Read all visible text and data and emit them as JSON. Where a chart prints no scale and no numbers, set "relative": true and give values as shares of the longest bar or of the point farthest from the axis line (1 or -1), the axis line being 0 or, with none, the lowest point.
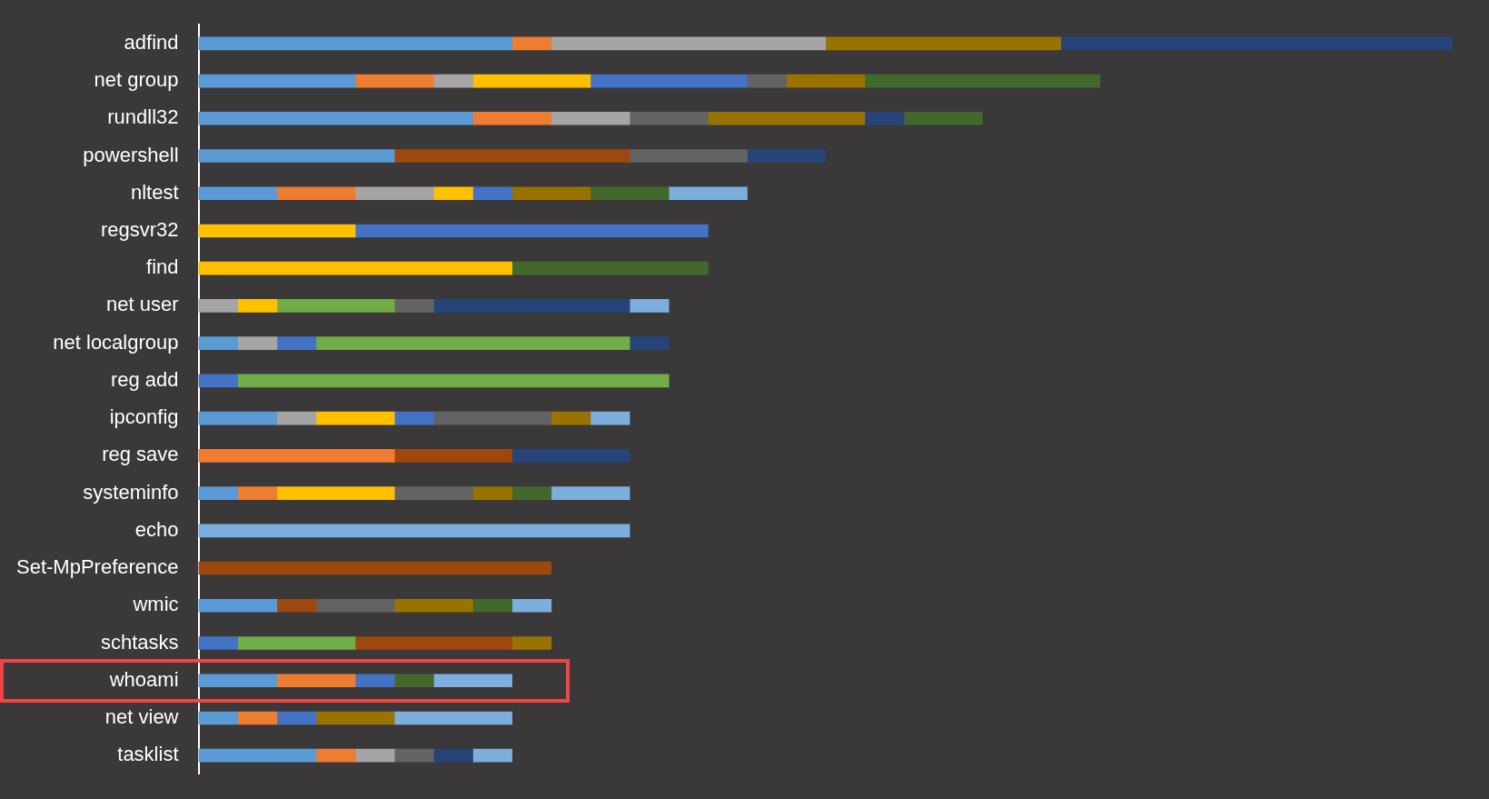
{
  "chart_data": {
    "type": "bar",
    "orientation": "horizontal",
    "stacked": true,
    "relative": true,
    "legend": false,
    "categories": [
      "adfind",
      "net group",
      "rundll32",
      "powershell",
      "nltest",
      "regsvr32",
      "find",
      "net user",
      "net localgroup",
      "reg add",
      "ipconfig",
      "reg save",
      "systeminfo",
      "echo",
      "Set-MpPreference",
      "wmic",
      "schtasks",
      "whoami",
      "net view",
      "tasklist"
    ],
    "series": [
      {
        "color": "#5b9bd5",
        "values": [
          0.25,
          0.125,
          0.21875,
          0.15625,
          0.0625,
          null,
          null,
          null,
          0.03125,
          null,
          0.0625,
          null,
          0.03125,
          null,
          null,
          0.0625,
          null,
          0.0625,
          0.03125,
          0.09375
        ]
      },
      {
        "color": "#ed7d31",
        "values": [
          0.03125,
          0.0625,
          0.0625,
          null,
          0.0625,
          null,
          null,
          null,
          null,
          null,
          null,
          0.15625,
          0.03125,
          null,
          null,
          null,
          null,
          0.0625,
          0.03125,
          0.03125
        ]
      },
      {
        "color": "#a5a5a5",
        "values": [
          0.21875,
          0.03125,
          0.0625,
          null,
          0.0625,
          null,
          null,
          0.03125,
          0.03125,
          null,
          0.03125,
          null,
          null,
          null,
          null,
          null,
          null,
          null,
          null,
          0.03125
        ]
      },
      {
        "color": "#ffc000",
        "values": [
          null,
          0.09375,
          null,
          null,
          0.03125,
          0.125,
          0.25,
          0.03125,
          null,
          null,
          0.0625,
          null,
          0.09375,
          null,
          null,
          null,
          null,
          null,
          null,
          null
        ]
      },
      {
        "color": "#4472c4",
        "values": [
          null,
          0.125,
          null,
          null,
          0.03125,
          0.28125,
          null,
          null,
          0.03125,
          0.03125,
          0.03125,
          null,
          null,
          null,
          null,
          null,
          0.03125,
          0.03125,
          0.03125,
          null
        ]
      },
      {
        "color": "#70ad47",
        "values": [
          null,
          null,
          null,
          null,
          null,
          null,
          null,
          0.09375,
          0.25,
          0.34375,
          null,
          null,
          null,
          null,
          null,
          null,
          0.09375,
          null,
          null,
          null
        ]
      },
      {
        "color": "#9e480e",
        "values": [
          null,
          null,
          null,
          0.1875,
          null,
          null,
          null,
          null,
          null,
          null,
          null,
          0.09375,
          null,
          null,
          0.28125,
          0.03125,
          0.125,
          null,
          null,
          null
        ]
      },
      {
        "color": "#636363",
        "values": [
          null,
          0.03125,
          0.0625,
          0.09375,
          null,
          null,
          null,
          0.03125,
          null,
          null,
          0.09375,
          null,
          0.0625,
          null,
          null,
          0.0625,
          null,
          null,
          null,
          0.03125
        ]
      },
      {
        "color": "#997300",
        "values": [
          0.1875,
          0.0625,
          0.125,
          null,
          0.0625,
          null,
          null,
          null,
          null,
          null,
          0.03125,
          null,
          0.03125,
          null,
          null,
          0.0625,
          0.03125,
          null,
          0.0625,
          null
        ]
      },
      {
        "color": "#264478",
        "values": [
          0.3125,
          null,
          0.03125,
          0.0625,
          null,
          null,
          null,
          0.15625,
          0.03125,
          null,
          null,
          0.09375,
          null,
          null,
          null,
          null,
          null,
          null,
          null,
          0.03125
        ]
      },
      {
        "color": "#43682b",
        "values": [
          null,
          0.1875,
          0.0625,
          null,
          0.0625,
          null,
          0.15625,
          null,
          null,
          null,
          null,
          null,
          0.03125,
          null,
          null,
          0.03125,
          null,
          0.03125,
          null,
          null
        ]
      },
      {
        "color": "#7cafdd",
        "values": [
          null,
          null,
          null,
          null,
          0.0625,
          null,
          null,
          0.03125,
          null,
          null,
          0.03125,
          null,
          0.0625,
          0.34375,
          null,
          0.03125,
          null,
          0.0625,
          0.09375,
          0.03125
        ]
      }
    ]
  }
}
